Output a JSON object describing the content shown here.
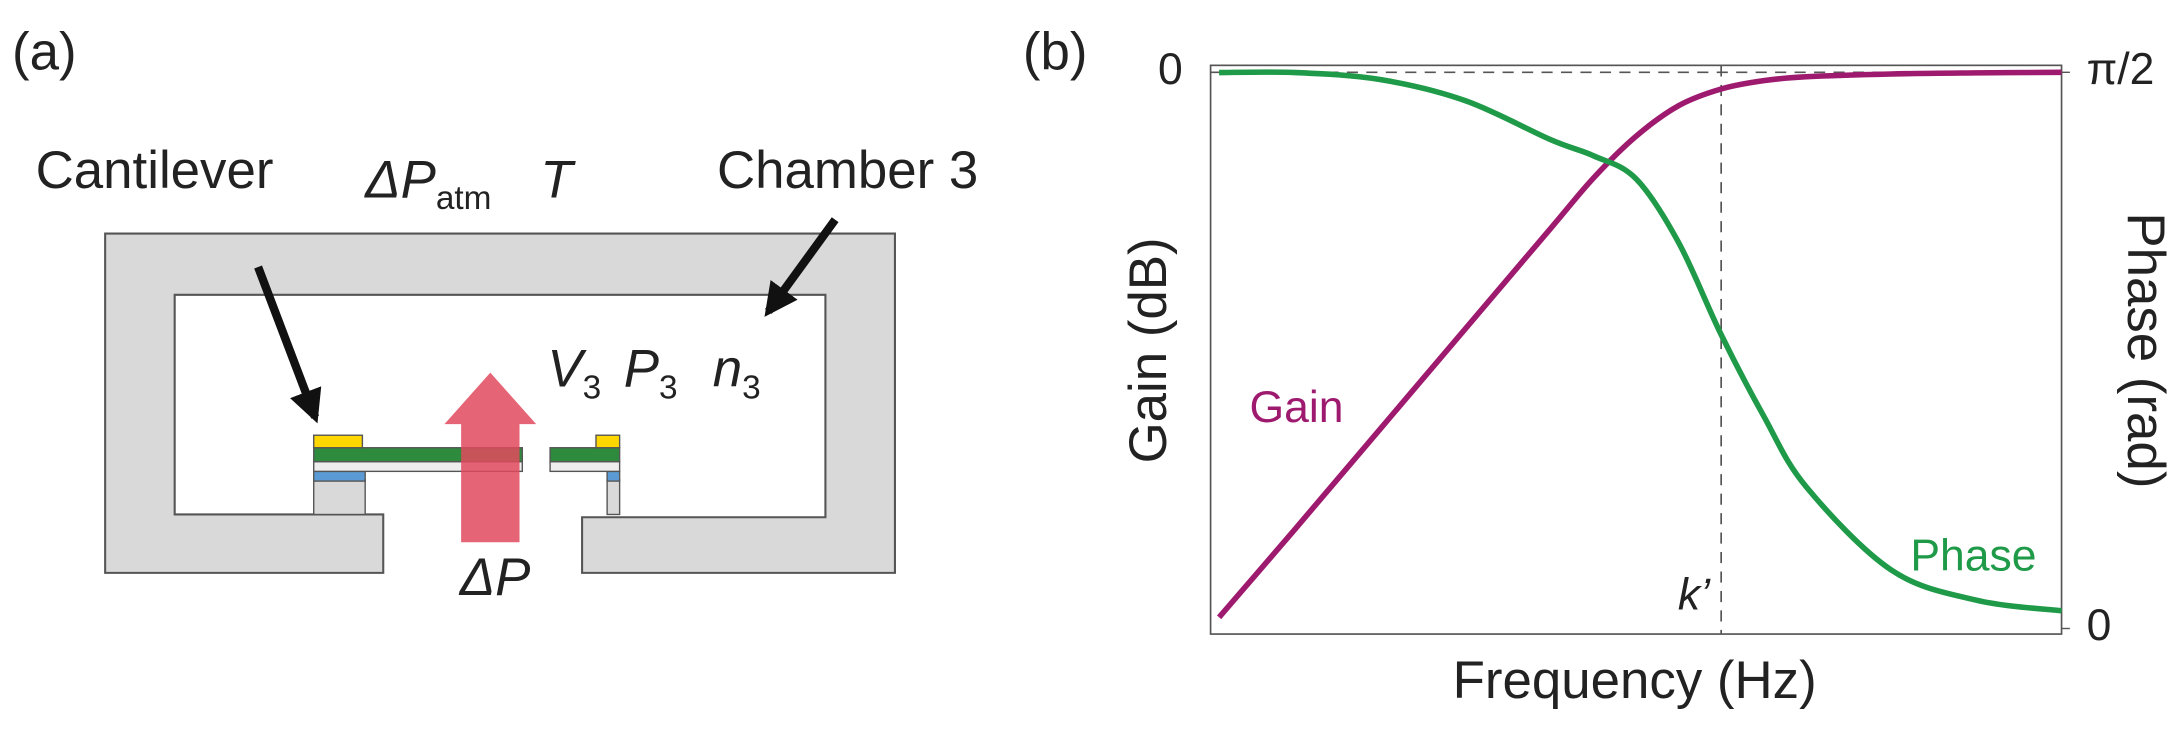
{
  "diagram": {
    "panel_label": "(a)",
    "cantilever": "Cantilever",
    "chamber": "Chamber 3",
    "ambient_pressure": {
      "symbol": "ΔP",
      "subscript": "atm"
    },
    "temperature": "T",
    "volume": {
      "symbol": "V",
      "subscript": "3"
    },
    "pressure": {
      "symbol": "P",
      "subscript": "3"
    },
    "moles": {
      "symbol": "n",
      "subscript": "3"
    },
    "pressure_difference": "ΔP"
  },
  "chart_data": {
    "type": "line",
    "panel_label": "(b)",
    "xlabel": "Frequency (Hz)",
    "ylabel": "Gain (dB)",
    "y2label": "Phase (rad)",
    "x": [
      0.01,
      0.1,
      0.2,
      0.3,
      0.4,
      0.45,
      0.5,
      0.55,
      0.6,
      0.65,
      0.7,
      0.8,
      0.9,
      1.0
    ],
    "xlim": [
      0,
      1
    ],
    "ylim": [
      -1,
      0
    ],
    "yticks": [
      0
    ],
    "y2lim": [
      0,
      1.5708
    ],
    "y2ticks": [
      {
        "value": 1.5708,
        "label": "π/2"
      },
      0
    ],
    "series": [
      {
        "name": "Gain",
        "color": "#9e1a6e",
        "values": [
          -0.98,
          -0.82,
          -0.64,
          -0.46,
          -0.28,
          -0.19,
          -0.115,
          -0.06,
          -0.03,
          -0.015,
          -0.008,
          -0.003,
          -0.001,
          0
        ]
      },
      {
        "name": "Phase",
        "color": "#1f9a48",
        "axis": "y2",
        "values": [
          1.57,
          1.57,
          1.55,
          1.49,
          1.38,
          1.335,
          1.27,
          1.09,
          0.83,
          0.6,
          0.4,
          0.165,
          0.08,
          0.05
        ]
      }
    ],
    "annotations": [
      {
        "text": "k’",
        "x": 0.6
      }
    ]
  }
}
